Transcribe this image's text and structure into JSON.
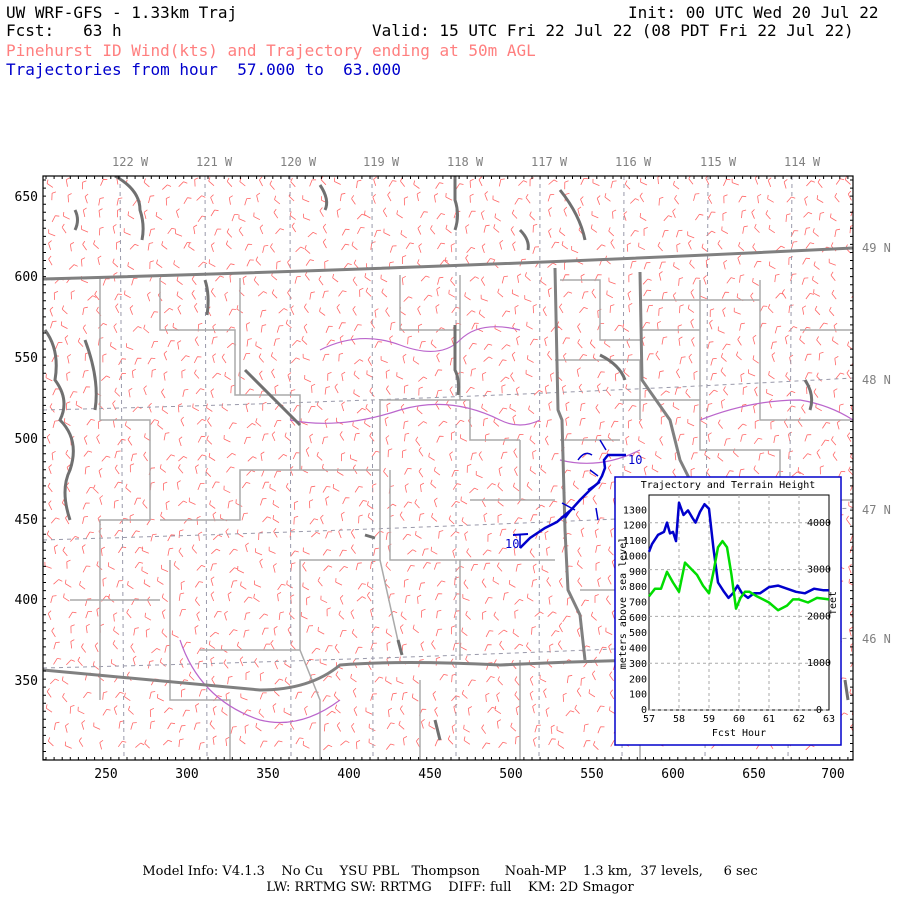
{
  "header": {
    "title": "UW WRF-GFS - 1.33km Traj",
    "init": "Init: 00 UTC Wed 20 Jul 22",
    "fcst": "Fcst:   63 h",
    "valid": "Valid: 15 UTC Fri 22 Jul 22 (08 PDT Fri 22 Jul 22)",
    "subtitle": "Pinehurst ID Wind(kts) and Trajectory ending at 50m AGL",
    "traj_range": "Trajectories from hour  57.000 to  63.000"
  },
  "map": {
    "lon_labels": [
      "122 W",
      "121 W",
      "120 W",
      "119 W",
      "118 W",
      "117 W",
      "116 W",
      "115 W",
      "114 W"
    ],
    "lat_labels": [
      "49 N",
      "48 N",
      "47 N",
      "46 N"
    ],
    "x_ticks": [
      "250",
      "300",
      "350",
      "400",
      "450",
      "500",
      "550",
      "600",
      "650",
      "700"
    ],
    "y_ticks": [
      "650",
      "600",
      "550",
      "500",
      "450",
      "400",
      "350"
    ],
    "traj_label_start": "10",
    "traj_label_end": "10",
    "colors": {
      "wind": "#ff6666",
      "state_border": "#808080",
      "county": "#aaaaaa",
      "river": "#bb66cc",
      "trajectory": "#0000cc",
      "terrain": "#00dd00"
    }
  },
  "inset": {
    "title": "Trajectory and Terrain Height",
    "xlabel": "Fcst Hour",
    "ylabel_left": "meters above sea level",
    "ylabel_right": "feet",
    "x_ticks": [
      "57",
      "58",
      "59",
      "60",
      "61",
      "62",
      "63"
    ],
    "y_ticks_m": [
      "0",
      "100",
      "200",
      "300",
      "400",
      "500",
      "600",
      "700",
      "800",
      "900",
      "1000",
      "1100",
      "1200",
      "1300"
    ],
    "y_ticks_ft": [
      "0",
      "1000",
      "2000",
      "3000",
      "4000"
    ]
  },
  "chart_data": {
    "type": "line",
    "title": "Trajectory and Terrain Height",
    "xlabel": "Fcst Hour",
    "ylabel": "meters above sea level",
    "xlim": [
      57,
      63
    ],
    "ylim": [
      0,
      1400
    ],
    "series": [
      {
        "name": "trajectory",
        "color": "#0000cc",
        "x": [
          57.0,
          57.1,
          57.3,
          57.5,
          57.6,
          57.7,
          57.8,
          57.9,
          58.0,
          58.15,
          58.3,
          58.45,
          58.55,
          58.7,
          58.85,
          59.0,
          59.15,
          59.3,
          59.5,
          59.65,
          59.8,
          59.95,
          60.1,
          60.3,
          60.5,
          60.7,
          61.0,
          61.3,
          61.6,
          61.9,
          62.2,
          62.5,
          62.8,
          63.0
        ],
        "y": [
          1030,
          1080,
          1140,
          1160,
          1220,
          1150,
          1160,
          1100,
          1350,
          1270,
          1300,
          1250,
          1220,
          1290,
          1340,
          1310,
          1050,
          830,
          770,
          730,
          760,
          810,
          760,
          730,
          760,
          760,
          800,
          810,
          790,
          770,
          760,
          790,
          780,
          780
        ]
      },
      {
        "name": "terrain",
        "color": "#00dd00",
        "x": [
          57.0,
          57.2,
          57.4,
          57.6,
          57.8,
          58.0,
          58.2,
          58.4,
          58.6,
          58.8,
          59.0,
          59.15,
          59.3,
          59.45,
          59.6,
          59.75,
          59.9,
          60.05,
          60.2,
          60.35,
          60.6,
          60.8,
          61.0,
          61.3,
          61.6,
          61.8,
          62.0,
          62.3,
          62.6,
          63.0
        ],
        "y": [
          740,
          790,
          790,
          900,
          830,
          770,
          960,
          920,
          880,
          810,
          760,
          900,
          1060,
          1100,
          1060,
          880,
          660,
          730,
          770,
          770,
          740,
          720,
          700,
          650,
          680,
          720,
          720,
          700,
          730,
          720
        ]
      }
    ]
  },
  "footer": {
    "line1": "Model Info: V4.1.3    No Cu    YSU PBL   Thompson      Noah-MP    1.3 km,  37 levels,     6 sec",
    "line2": "LW: RRTMG SW: RRTMG    DIFF: full    KM: 2D Smagor"
  }
}
